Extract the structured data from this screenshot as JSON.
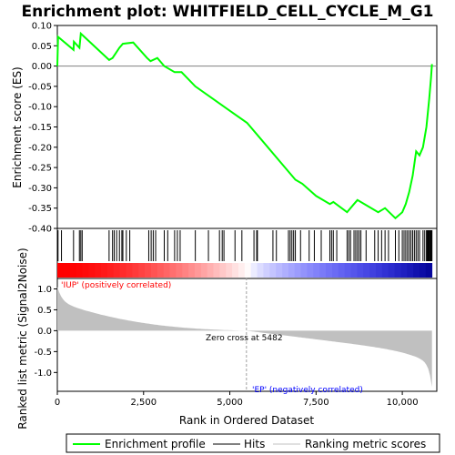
{
  "chart_data": {
    "type": "line",
    "title": "Enrichment plot: WHITFIELD_CELL_CYCLE_M_G1",
    "ylabel_top": "Enrichment score (ES)",
    "ylabel_bottom": "Ranked list metric (Signal2Noise)",
    "xlabel": "Rank in Ordered Dataset",
    "es_ylim": [
      -0.4,
      0.1
    ],
    "es_yticks": [
      "0.10",
      "0.05",
      "0.00",
      "-0.05",
      "-0.10",
      "-0.15",
      "-0.20",
      "-0.25",
      "-0.30",
      "-0.35",
      "-0.40"
    ],
    "es_ytick_values": [
      0.1,
      0.05,
      0.0,
      -0.05,
      -0.1,
      -0.15,
      -0.2,
      -0.25,
      -0.3,
      -0.35,
      -0.4
    ],
    "metric_ylim": [
      -1.45,
      1.25
    ],
    "metric_yticks": [
      "1.0",
      "0.5",
      "0.0",
      "-0.5",
      "-1.0"
    ],
    "metric_ytick_values": [
      1.0,
      0.5,
      0.0,
      -0.5,
      -1.0
    ],
    "xlim": [
      0,
      11000
    ],
    "xticks": [
      "0",
      "2,500",
      "5,000",
      "7,500",
      "10,000"
    ],
    "xtick_values": [
      0,
      2500,
      5000,
      7500,
      10000
    ],
    "n_genes": 10860,
    "zero_cross": 5482,
    "zero_cross_label": "Zero cross at 5482",
    "pos_label": "'IUP' (positively correlated)",
    "neg_label": "'EP' (negatively correlated)",
    "es_profile": [
      [
        0,
        0.0
      ],
      [
        20,
        0.072
      ],
      [
        470,
        0.04
      ],
      [
        480,
        0.06
      ],
      [
        640,
        0.045
      ],
      [
        680,
        0.08
      ],
      [
        1500,
        0.015
      ],
      [
        1600,
        0.02
      ],
      [
        1800,
        0.045
      ],
      [
        1900,
        0.055
      ],
      [
        2200,
        0.058
      ],
      [
        2600,
        0.02
      ],
      [
        2700,
        0.012
      ],
      [
        2900,
        0.02
      ],
      [
        3100,
        0.0
      ],
      [
        3400,
        -0.015
      ],
      [
        3600,
        -0.015
      ],
      [
        4000,
        -0.05
      ],
      [
        4500,
        -0.08
      ],
      [
        5000,
        -0.11
      ],
      [
        5500,
        -0.14
      ],
      [
        6000,
        -0.19
      ],
      [
        6500,
        -0.24
      ],
      [
        6900,
        -0.28
      ],
      [
        7100,
        -0.29
      ],
      [
        7500,
        -0.32
      ],
      [
        7900,
        -0.34
      ],
      [
        8000,
        -0.335
      ],
      [
        8400,
        -0.36
      ],
      [
        8600,
        -0.34
      ],
      [
        8700,
        -0.33
      ],
      [
        9000,
        -0.345
      ],
      [
        9300,
        -0.36
      ],
      [
        9500,
        -0.35
      ],
      [
        9800,
        -0.375
      ],
      [
        10000,
        -0.36
      ],
      [
        10100,
        -0.34
      ],
      [
        10200,
        -0.31
      ],
      [
        10300,
        -0.27
      ],
      [
        10400,
        -0.21
      ],
      [
        10500,
        -0.22
      ],
      [
        10600,
        -0.2
      ],
      [
        10700,
        -0.15
      ],
      [
        10780,
        -0.08
      ],
      [
        10830,
        -0.03
      ],
      [
        10860,
        0.005
      ]
    ],
    "hits": [
      20,
      120,
      470,
      640,
      680,
      720,
      1500,
      1600,
      1650,
      1720,
      1800,
      1870,
      1900,
      2000,
      2100,
      2650,
      2720,
      2780,
      2850,
      3100,
      3200,
      3400,
      3480,
      3560,
      4000,
      4380,
      4700,
      4780,
      4830,
      5150,
      5350,
      5700,
      5780,
      5800,
      6250,
      6350,
      6700,
      6750,
      6800,
      6850,
      6900,
      7050,
      7300,
      7450,
      7650,
      7900,
      7950,
      8000,
      8100,
      8400,
      8450,
      8500,
      8600,
      8650,
      8700,
      8750,
      8800,
      8950,
      9200,
      9300,
      9400,
      9500,
      9600,
      9800,
      9900,
      10000,
      10050,
      10100,
      10150,
      10200,
      10250,
      10300,
      10350,
      10400,
      10450,
      10500,
      10600,
      10650,
      10700,
      10720,
      10740,
      10760,
      10780,
      10800,
      10820,
      10840,
      10860
    ]
  },
  "legend": {
    "items": [
      {
        "label": "Enrichment profile",
        "color": "#00ff00"
      },
      {
        "label": "Hits",
        "color": "#000000"
      },
      {
        "label": "Ranking metric scores",
        "color": "#c0c0c0"
      }
    ]
  },
  "colors": {
    "profile": "#00ff00",
    "metric_fill": "#c0c0c0",
    "pos_text": "#ff0000",
    "neg_text": "#0000ff",
    "grid_zero": "#808080"
  }
}
